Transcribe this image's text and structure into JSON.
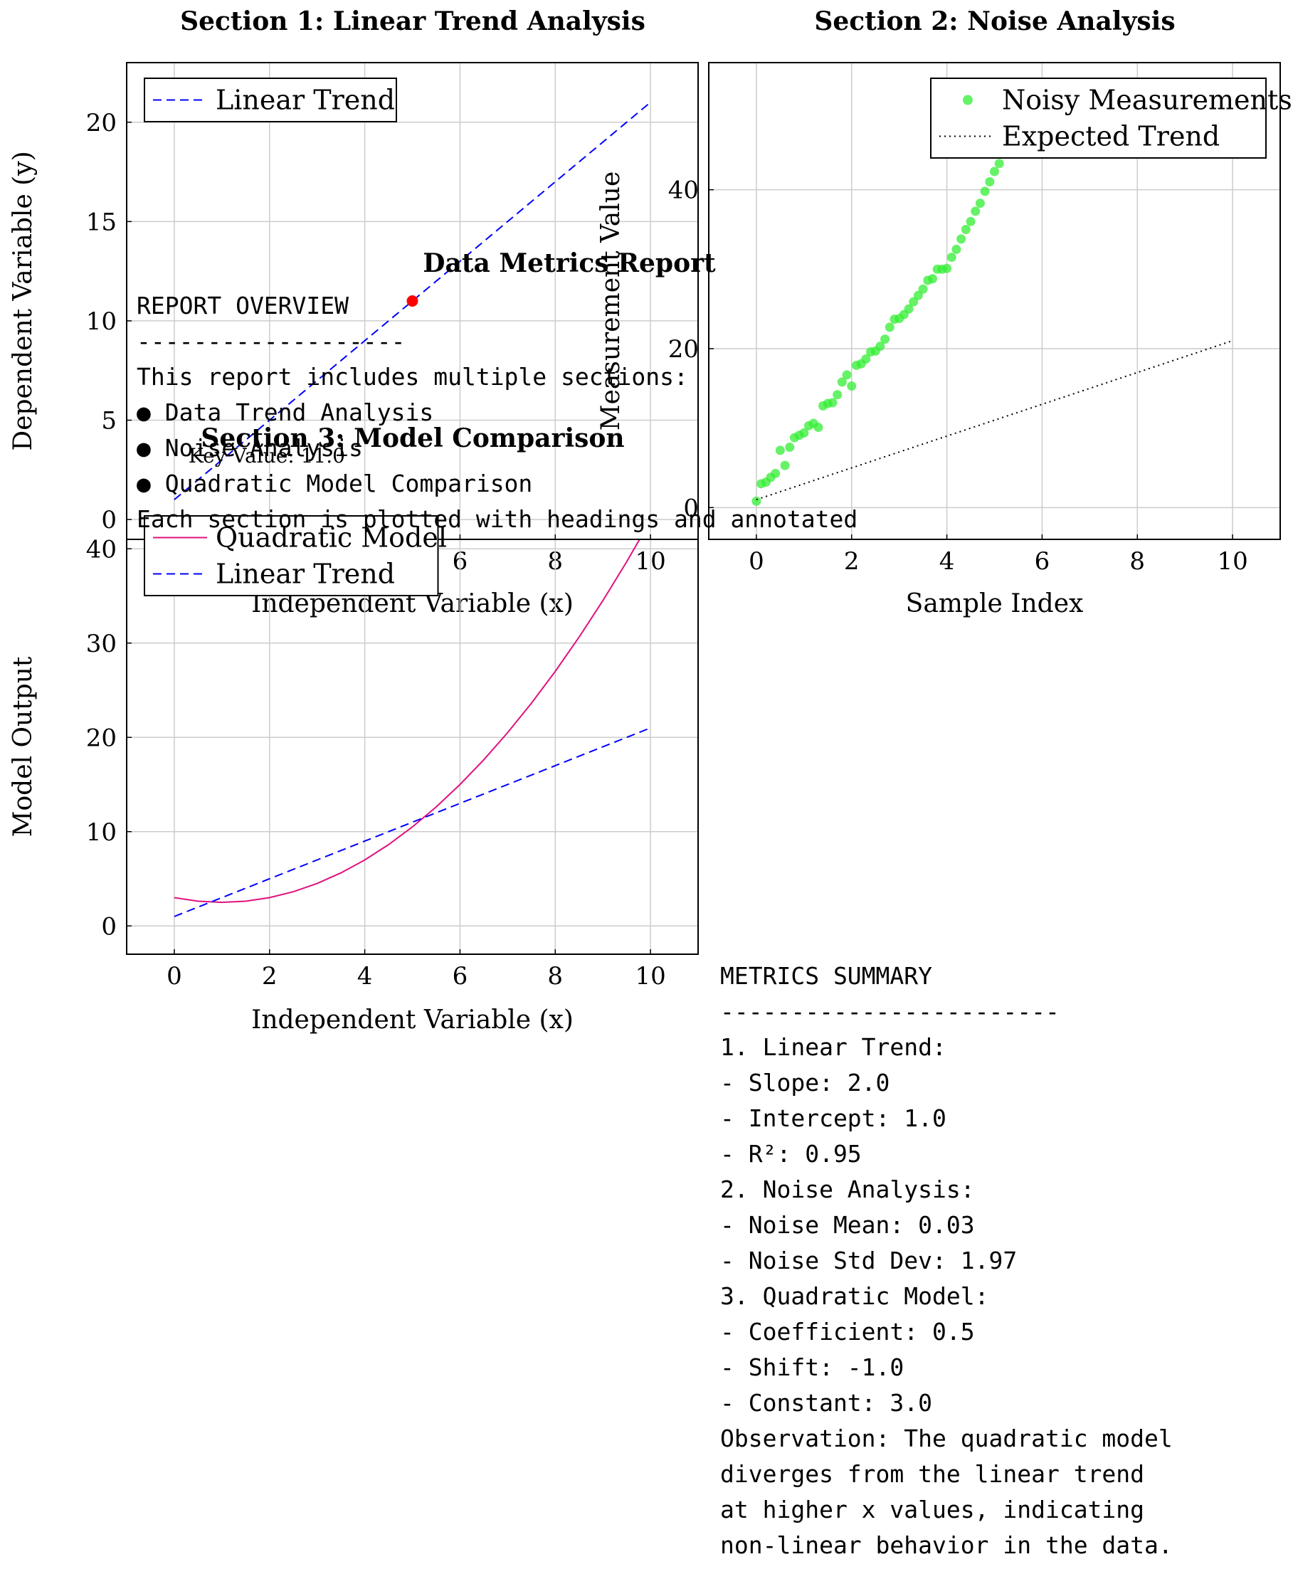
{
  "report_title": "Data Metrics Report",
  "overview": {
    "lines": [
      "REPORT OVERVIEW",
      "-------------------",
      "This report includes multiple sections:",
      "● Data Trend Analysis",
      "● Noise Analysis",
      "● Quadratic Model Comparison",
      "Each section is plotted with headings and annotated"
    ]
  },
  "metrics_summary": {
    "lines": [
      "METRICS SUMMARY",
      "------------------------",
      "1. Linear Trend:",
      "- Slope: 2.0",
      "- Intercept: 1.0",
      "- R²: 0.95",
      "2. Noise Analysis:",
      "- Noise Mean: 0.03",
      "- Noise Std Dev: 1.97",
      "3. Quadratic Model:",
      "- Coefficient: 0.5",
      "- Shift: -1.0",
      "- Constant: 3.0",
      "Observation: The quadratic model",
      "diverges from the linear trend",
      "at higher x values, indicating",
      "non-linear behavior in the data."
    ]
  },
  "chart_data": [
    {
      "id": "section1",
      "type": "line",
      "title": "Section 1: Linear Trend Analysis",
      "xlabel": "Independent Variable (x)",
      "ylabel": "Dependent Variable (y)",
      "xlim": [
        -1,
        11
      ],
      "ylim": [
        -1,
        23
      ],
      "xticks": [
        0,
        2,
        4,
        6,
        8,
        10
      ],
      "yticks": [
        0,
        5,
        10,
        15,
        20
      ],
      "grid": true,
      "legend_position": "top-left",
      "series": [
        {
          "name": "Linear Trend",
          "color": "#0000ff",
          "dash": "dashed",
          "x": [
            0,
            10
          ],
          "y": [
            1,
            21
          ]
        }
      ],
      "highlight_point": {
        "x": 5,
        "y": 11,
        "color": "#ff0000"
      },
      "annotation": {
        "text": "Key Value: 11.0",
        "x": 0,
        "y": 2.8
      }
    },
    {
      "id": "section2",
      "type": "scatter",
      "title": "Section 2: Noise Analysis",
      "xlabel": "Sample Index",
      "ylabel": "Measurement Value",
      "xlim": [
        -1,
        11
      ],
      "ylim": [
        -4,
        56
      ],
      "xticks": [
        0,
        2,
        4,
        6,
        8,
        10
      ],
      "yticks": [
        0,
        20,
        40
      ],
      "grid": true,
      "legend_position": "top-right",
      "series": [
        {
          "name": "Noisy Measurements",
          "color": "#33ee33",
          "x": [
            0,
            0.1,
            0.2,
            0.3,
            0.4,
            0.5,
            0.6,
            0.7,
            0.8,
            0.9,
            1.0,
            1.1,
            1.2,
            1.3,
            1.4,
            1.5,
            1.6,
            1.7,
            1.8,
            1.9,
            2.0,
            2.1,
            2.2,
            2.3,
            2.4,
            2.5,
            2.6,
            2.7,
            2.8,
            2.9,
            3.0,
            3.1,
            3.2,
            3.3,
            3.4,
            3.5,
            3.6,
            3.7,
            3.8,
            3.9,
            4.0,
            4.1,
            4.2,
            4.3,
            4.4,
            4.5,
            4.6,
            4.7,
            4.8,
            4.9,
            5.0,
            5.1,
            5.2,
            5.3
          ],
          "y": [
            0.8,
            3.0,
            3.2,
            3.8,
            4.3,
            7.2,
            5.3,
            7.6,
            8.8,
            9.1,
            9.4,
            10.3,
            10.6,
            10.1,
            12.8,
            13.1,
            13.2,
            14.2,
            15.8,
            16.7,
            15.3,
            17.9,
            18.1,
            18.7,
            19.6,
            19.7,
            20.3,
            21.2,
            22.7,
            23.7,
            23.8,
            24.3,
            25.0,
            25.9,
            26.7,
            27.5,
            28.6,
            28.8,
            30.0,
            30.0,
            30.1,
            31.5,
            32.5,
            33.8,
            35.0,
            36.0,
            37.3,
            38.3,
            39.8,
            41.0,
            42.3,
            43.3,
            44.7,
            46.0
          ]
        },
        {
          "name": "Expected Trend",
          "color": "#000000",
          "dash": "dotted",
          "x": [
            0,
            10
          ],
          "y": [
            1,
            21
          ]
        }
      ]
    },
    {
      "id": "section3",
      "type": "line",
      "title": "Section 3: Model Comparison",
      "xlabel": "Independent Variable (x)",
      "ylabel": "Model Output",
      "xlim": [
        -1,
        11
      ],
      "ylim": [
        -3,
        41
      ],
      "xticks": [
        0,
        2,
        4,
        6,
        8,
        10
      ],
      "yticks": [
        0,
        10,
        20,
        30,
        40
      ],
      "grid": true,
      "legend_position": "top-left",
      "series": [
        {
          "name": "Quadratic Model",
          "color": "#e0117f",
          "dash": "solid",
          "x": [
            0,
            0.5,
            1,
            1.5,
            2,
            2.5,
            3,
            3.5,
            4,
            4.5,
            5,
            5.5,
            6,
            6.5,
            7,
            7.5,
            8,
            8.5,
            9,
            9.5,
            10
          ],
          "y": [
            3,
            2.625,
            2.5,
            2.625,
            3,
            3.625,
            4.5,
            5.625,
            7,
            8.625,
            10.5,
            12.625,
            15,
            17.625,
            20.5,
            23.625,
            27,
            30.625,
            34.5,
            38.625,
            43
          ]
        },
        {
          "name": "Linear Trend",
          "color": "#0000ff",
          "dash": "dashed",
          "x": [
            0,
            10
          ],
          "y": [
            1,
            21
          ]
        }
      ]
    }
  ]
}
